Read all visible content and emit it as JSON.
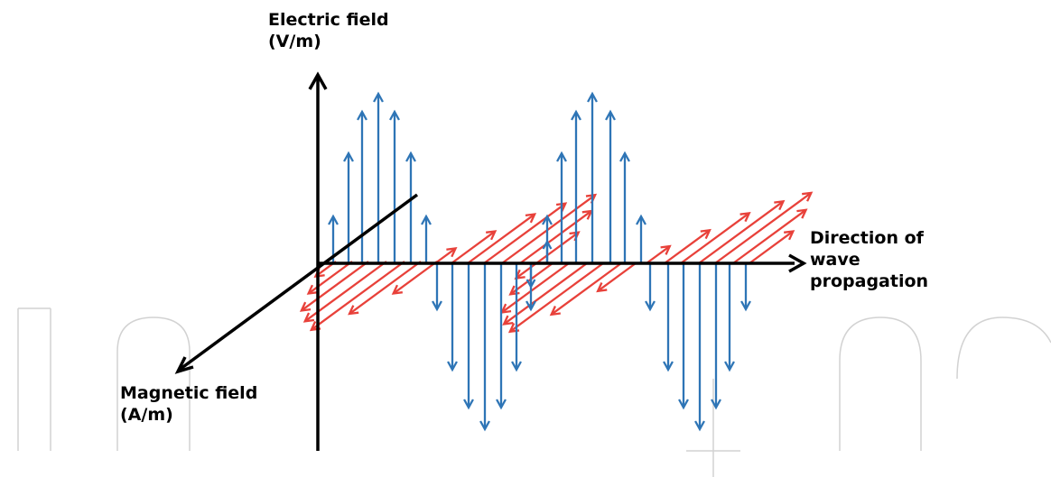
{
  "labels": {
    "electric_line1": "Electric field",
    "electric_line2": "(V/m)",
    "magnetic_line1": "Magnetic field",
    "magnetic_line2": "(A/m)",
    "direction_line1": "Direction of",
    "direction_line2": "wave",
    "direction_line3": "propagation"
  },
  "colors": {
    "axis": "#000000",
    "electric": "#2e75b6",
    "magnetic": "#e8413a",
    "watermark": "#d0d0d0"
  }
}
